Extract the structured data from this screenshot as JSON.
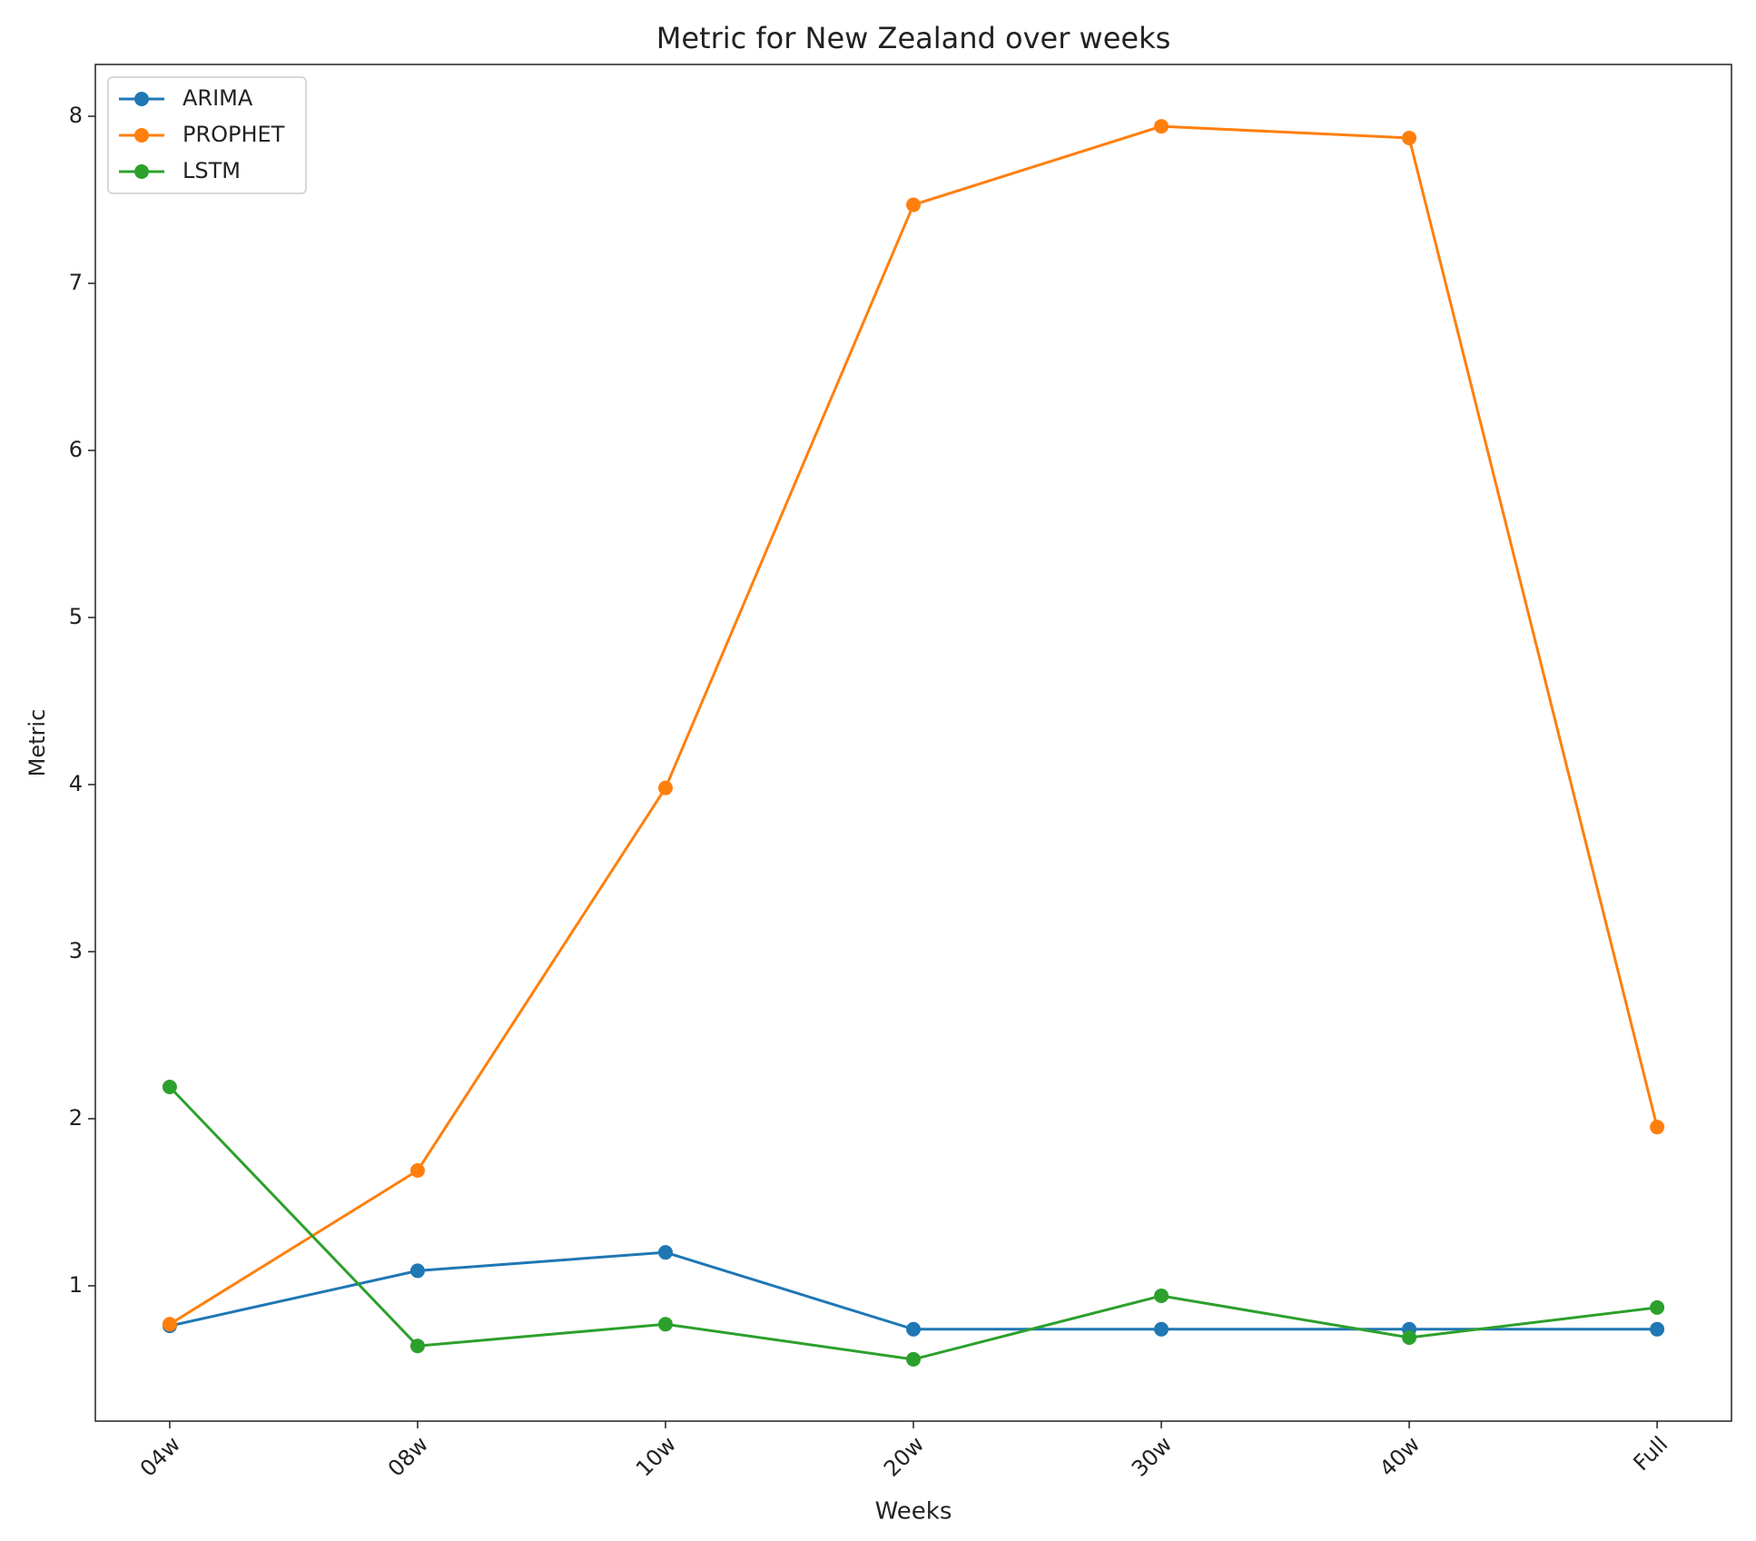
{
  "chart_data": {
    "type": "line",
    "title": "Metric for New Zealand over weeks",
    "x_label": "Weeks",
    "y_label": "Metric",
    "categories": [
      "04w",
      "08w",
      "10w",
      "20w",
      "30w",
      "40w",
      "Full"
    ],
    "series": [
      {
        "name": "ARIMA",
        "color": "#1f77b4",
        "values": [
          0.76,
          1.09,
          1.2,
          0.74,
          0.74,
          0.74,
          0.74
        ]
      },
      {
        "name": "PROPHET",
        "color": "#ff7f0e",
        "values": [
          0.77,
          1.69,
          3.98,
          7.47,
          7.94,
          7.87,
          1.95
        ]
      },
      {
        "name": "LSTM",
        "color": "#2ca02c",
        "values": [
          2.19,
          0.64,
          0.77,
          0.56,
          0.94,
          0.69,
          0.87
        ]
      }
    ],
    "ylim": [
      0.19,
      8.31
    ],
    "yticks": [
      1,
      2,
      3,
      4,
      5,
      6,
      7,
      8
    ],
    "grid": false,
    "legend": "upper left"
  }
}
